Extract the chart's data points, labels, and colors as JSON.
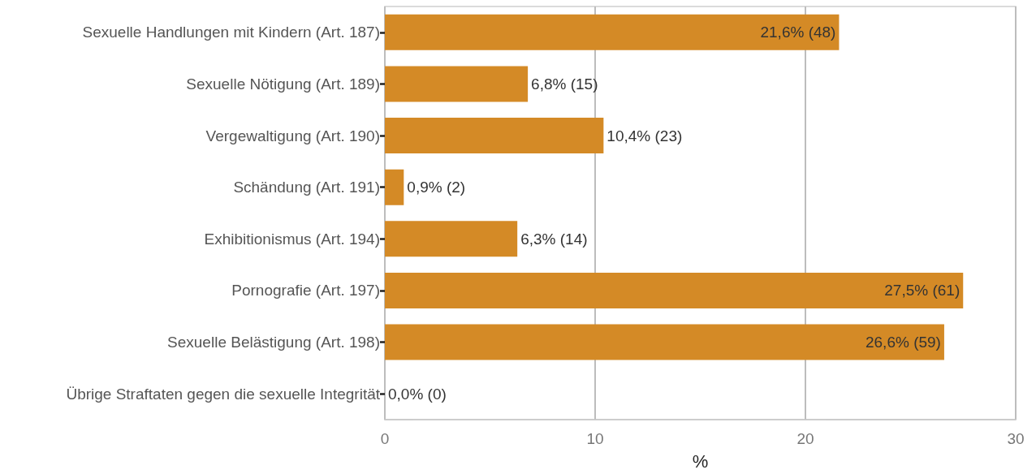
{
  "chart_data": {
    "type": "bar",
    "orientation": "horizontal",
    "categories": [
      "Sexuelle Handlungen mit Kindern (Art. 187)",
      "Sexuelle Nötigung (Art. 189)",
      "Vergewaltigung (Art. 190)",
      "Schändung (Art. 191)",
      "Exhibitionismus (Art. 194)",
      "Pornografie (Art. 197)",
      "Sexuelle Belästigung (Art. 198)",
      "Übrige Straftaten gegen die sexuelle Integrität"
    ],
    "values": [
      21.6,
      6.8,
      10.4,
      0.9,
      6.3,
      27.5,
      26.6,
      0.0
    ],
    "value_labels": [
      "21,6% (48)",
      "6,8% (15)",
      "10,4% (23)",
      "0,9% (2)",
      "6,3% (14)",
      "27,5% (61)",
      "26,6% (59)",
      "0,0% (0)"
    ],
    "color": "#d48a26",
    "xlim": [
      0,
      30
    ],
    "xticks": [
      0,
      10,
      20,
      30
    ],
    "xlabel": "%",
    "grid": "x"
  }
}
